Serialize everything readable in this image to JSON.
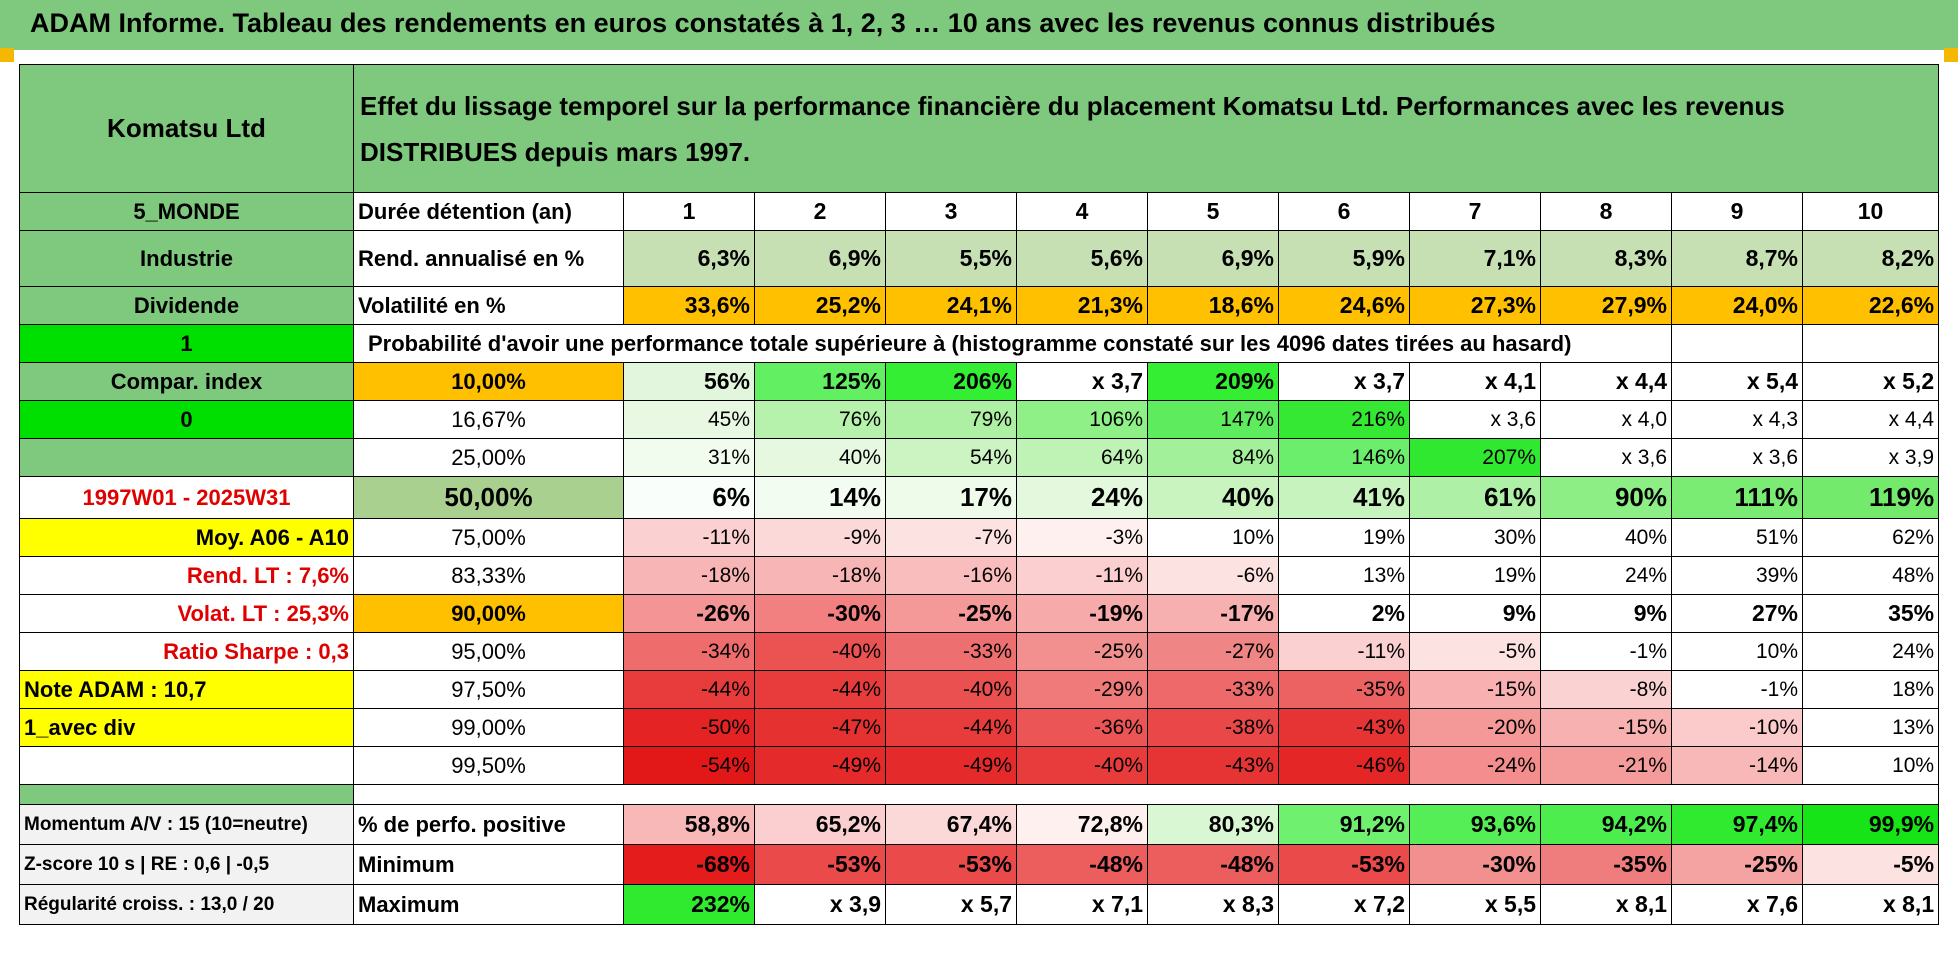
{
  "title": "ADAM Informe. Tableau des rendements en euros constatés à 1, 2, 3 … 10 ans avec les revenus connus distribués",
  "company": "Komatsu Ltd",
  "description": "Effet du lissage temporel sur la performance financière du placement Komatsu Ltd. Performances avec les revenus DISTRIBUES depuis mars 1997.",
  "colors": {
    "green_header": "#7fc97f",
    "orange": "#ffc000",
    "bright_green": "#00e000",
    "yellow": "#ffff00",
    "red_text": "#e00000"
  },
  "rows": {
    "duration": {
      "side": "5_MONDE",
      "label": "Durée détention (an)",
      "values": [
        "1",
        "2",
        "3",
        "4",
        "5",
        "6",
        "7",
        "8",
        "9",
        "10"
      ]
    },
    "rend": {
      "side": "Industrie",
      "label": "Rend. annualisé en %",
      "values": [
        "6,3%",
        "6,9%",
        "5,5%",
        "5,6%",
        "6,9%",
        "5,9%",
        "7,1%",
        "8,3%",
        "8,7%",
        "8,2%"
      ]
    },
    "vol": {
      "side": "Dividende",
      "label": "Volatilité en %",
      "values": [
        "33,6%",
        "25,2%",
        "24,1%",
        "21,3%",
        "18,6%",
        "24,6%",
        "27,3%",
        "27,9%",
        "24,0%",
        "22,6%"
      ]
    },
    "proba": {
      "side": "1",
      "label": "Probabilité d'avoir une performance totale supérieure à (histogramme constaté sur les 4096 dates tirées au hasard)"
    },
    "p10": {
      "side": "Compar. index",
      "label": "10,00%",
      "values": [
        "56%",
        "125%",
        "206%",
        "x 3,7",
        "209%",
        "x 3,7",
        "x 4,1",
        "x 4,4",
        "x 5,4",
        "x 5,2"
      ]
    },
    "p16": {
      "side": "0",
      "label": "16,67%",
      "values": [
        "45%",
        "76%",
        "79%",
        "106%",
        "147%",
        "216%",
        "x 3,6",
        "x 4,0",
        "x 4,3",
        "x 4,4"
      ]
    },
    "p25": {
      "side": "",
      "label": "25,00%",
      "values": [
        "31%",
        "40%",
        "54%",
        "64%",
        "84%",
        "146%",
        "207%",
        "x 3,6",
        "x 3,6",
        "x 3,9"
      ]
    },
    "p50": {
      "side": "1997W01 - 2025W31",
      "label": "50,00%",
      "values": [
        "6%",
        "14%",
        "17%",
        "24%",
        "40%",
        "41%",
        "61%",
        "90%",
        "111%",
        "119%"
      ]
    },
    "p75": {
      "side": "Moy. A06 - A10",
      "label": "75,00%",
      "values": [
        "-11%",
        "-9%",
        "-7%",
        "-3%",
        "10%",
        "19%",
        "30%",
        "40%",
        "51%",
        "62%"
      ]
    },
    "p83": {
      "side": "Rend. LT :    7,6%",
      "label": "83,33%",
      "values": [
        "-18%",
        "-18%",
        "-16%",
        "-11%",
        "-6%",
        "13%",
        "19%",
        "24%",
        "39%",
        "48%"
      ]
    },
    "p90": {
      "side": "Volat. LT :    25,3%",
      "label": "90,00%",
      "values": [
        "-26%",
        "-30%",
        "-25%",
        "-19%",
        "-17%",
        "2%",
        "9%",
        "9%",
        "27%",
        "35%"
      ]
    },
    "p95": {
      "side": "Ratio Sharpe :     0,3",
      "label": "95,00%",
      "values": [
        "-34%",
        "-40%",
        "-33%",
        "-25%",
        "-27%",
        "-11%",
        "-5%",
        "-1%",
        "10%",
        "24%"
      ]
    },
    "p975": {
      "side": "Note ADAM : 10,7",
      "label": "97,50%",
      "values": [
        "-44%",
        "-44%",
        "-40%",
        "-29%",
        "-33%",
        "-35%",
        "-15%",
        "-8%",
        "-1%",
        "18%"
      ]
    },
    "p99": {
      "side": "1_avec div",
      "label": "99,00%",
      "values": [
        "-50%",
        "-47%",
        "-44%",
        "-36%",
        "-38%",
        "-43%",
        "-20%",
        "-15%",
        "-10%",
        "13%"
      ]
    },
    "p995": {
      "side": "",
      "label": "99,50%",
      "values": [
        "-54%",
        "-49%",
        "-49%",
        "-40%",
        "-43%",
        "-46%",
        "-24%",
        "-21%",
        "-14%",
        "10%"
      ]
    },
    "pos": {
      "side": "Momentum A/V : 15 (10=neutre)",
      "label": "% de perfo. positive",
      "values": [
        "58,8%",
        "65,2%",
        "67,4%",
        "72,8%",
        "80,3%",
        "91,2%",
        "93,6%",
        "94,2%",
        "97,4%",
        "99,9%"
      ]
    },
    "min": {
      "side": "Z-score 10 s | RE : 0,6 | -0,5",
      "label": "Minimum",
      "values": [
        "-68%",
        "-53%",
        "-53%",
        "-48%",
        "-48%",
        "-53%",
        "-30%",
        "-35%",
        "-25%",
        "-5%"
      ]
    },
    "max": {
      "side": "Régularité croiss. : 13,0 / 20",
      "label": "Maximum",
      "values": [
        "232%",
        "x 3,9",
        "x 5,7",
        "x 7,1",
        "x 8,3",
        "x 7,2",
        "x 5,5",
        "x 8,1",
        "x 7,6",
        "x 8,1"
      ]
    }
  }
}
